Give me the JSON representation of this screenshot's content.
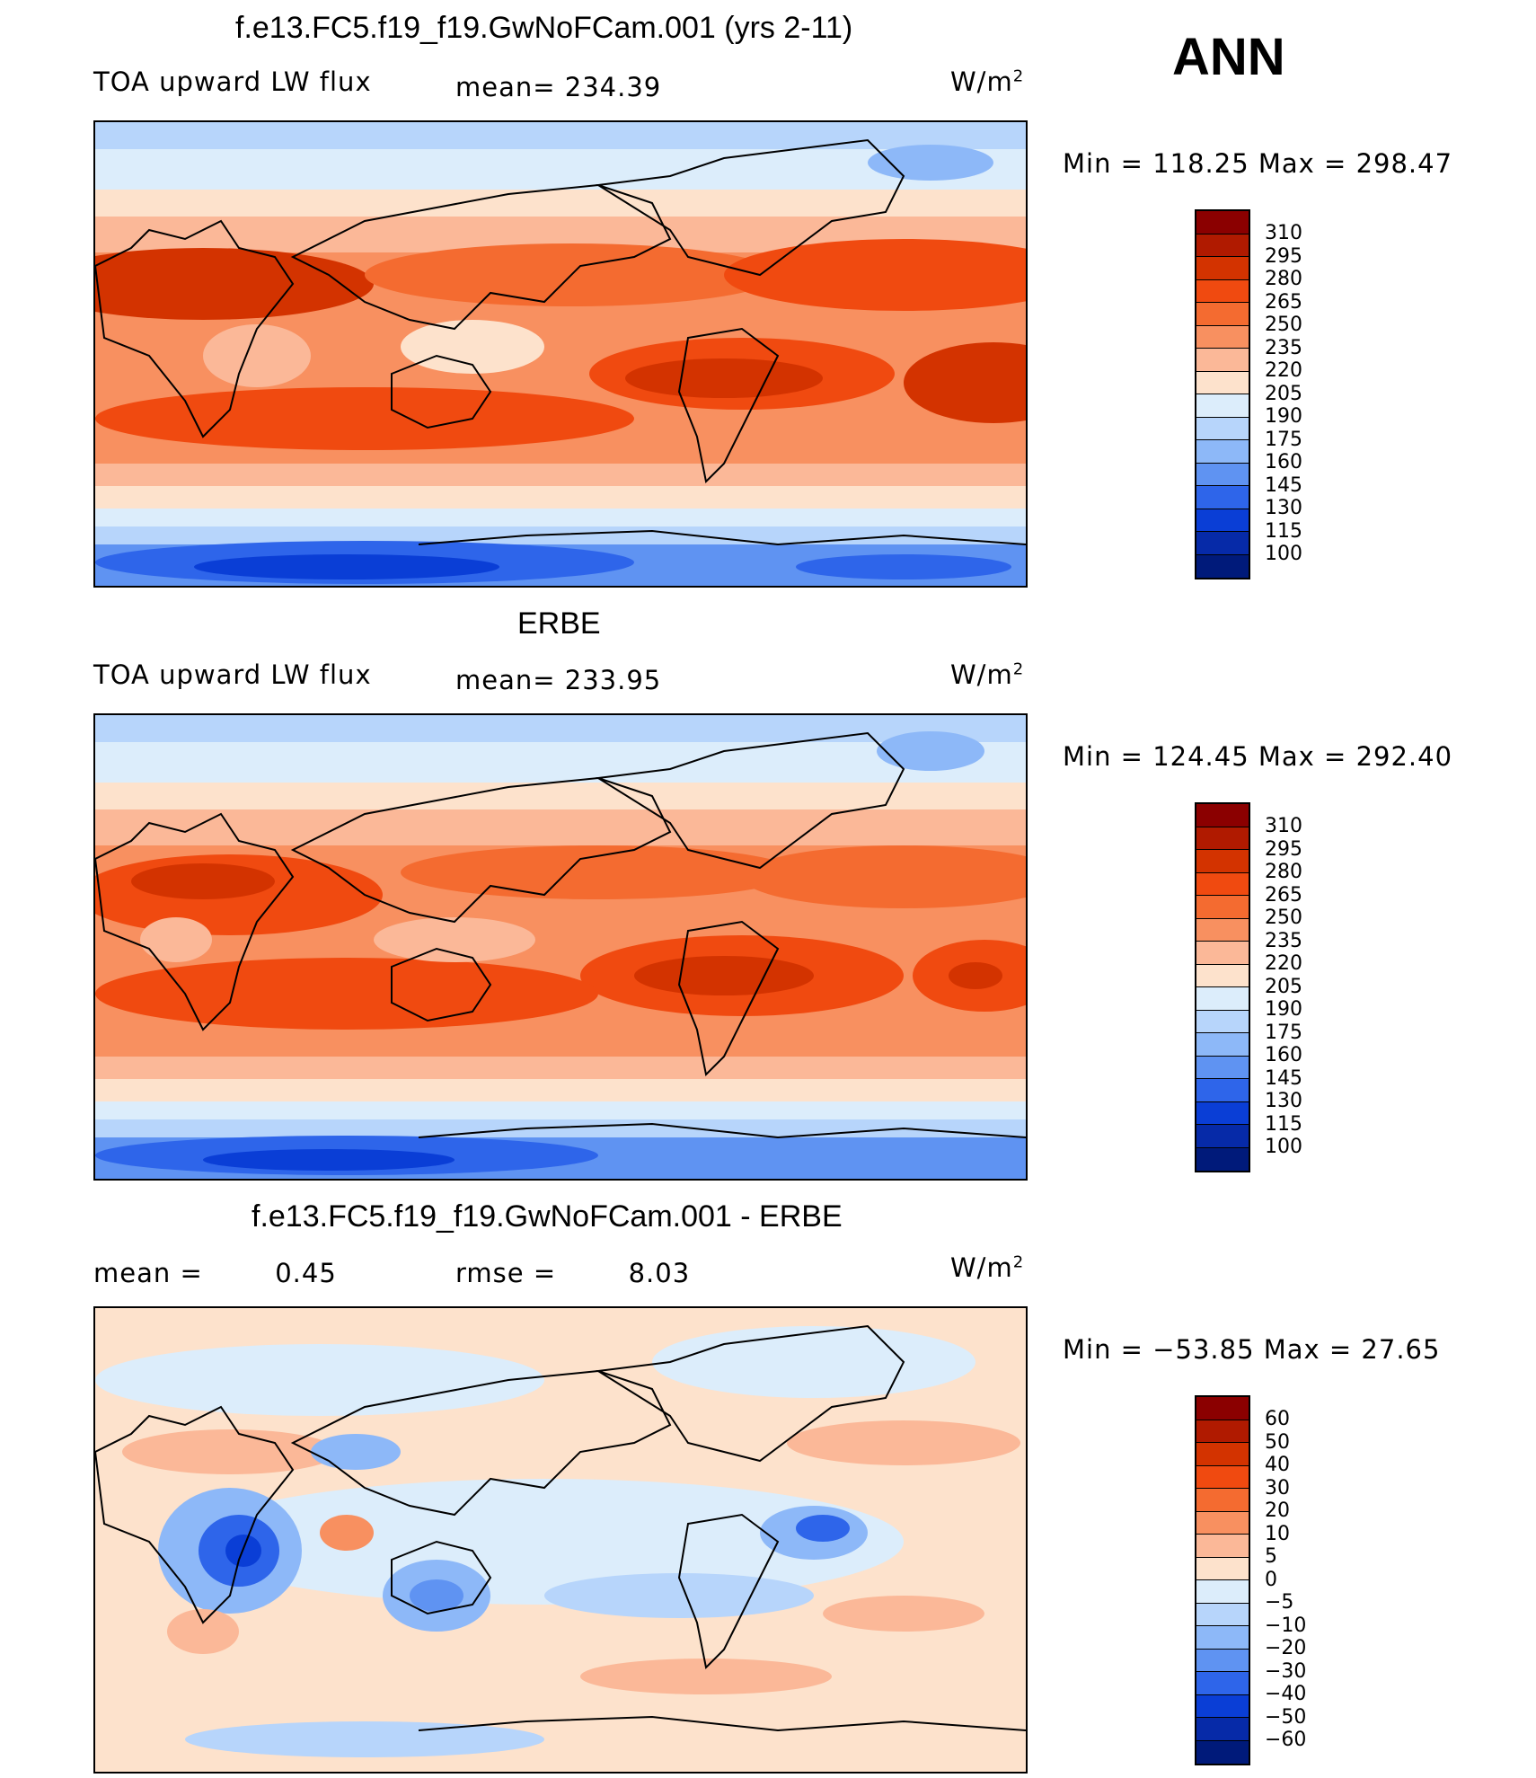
{
  "season": "ANN",
  "units": "W/m",
  "units_sup": "2",
  "panels": [
    {
      "title": "f.e13.FC5.f19_f19.GwNoFCam.001 (yrs 2-11)",
      "left_label": "TOA upward LW flux",
      "center_label": "mean=",
      "center_value": "234.39",
      "minmax": "Min  =  118.25  Max  =  298.47"
    },
    {
      "title": "ERBE",
      "left_label": "TOA upward LW flux",
      "center_label": "mean=",
      "center_value": "233.95",
      "minmax": "Min  =  124.45  Max  =  292.40"
    },
    {
      "title": "f.e13.FC5.f19_f19.GwNoFCam.001 - ERBE",
      "left_label": "mean  =",
      "left_value": "0.45",
      "center_label": "rmse  =",
      "center_value": "8.03",
      "minmax": "Min  =  −53.85  Max  =    27.65"
    }
  ],
  "colorbars": {
    "absolute": {
      "levels": [
        "310",
        "295",
        "280",
        "265",
        "250",
        "235",
        "220",
        "205",
        "190",
        "175",
        "160",
        "145",
        "130",
        "115",
        "100"
      ],
      "colors": [
        "#8b0000",
        "#b01a00",
        "#d33300",
        "#f04a10",
        "#f46b30",
        "#f89060",
        "#fbb898",
        "#fde2cc",
        "#dcedfb",
        "#b7d5fb",
        "#8db8f8",
        "#5f93f2",
        "#2e65ea",
        "#0a3ed6",
        "#062aa8",
        "#001a7a"
      ]
    },
    "difference": {
      "levels": [
        "60",
        "50",
        "40",
        "30",
        "20",
        "10",
        "5",
        "0",
        "−5",
        "−10",
        "−20",
        "−30",
        "−40",
        "−50",
        "−60"
      ],
      "colors": [
        "#8b0000",
        "#b01a00",
        "#d33300",
        "#f04a10",
        "#f46b30",
        "#f89060",
        "#fbb898",
        "#fde2cc",
        "#dcedfb",
        "#b7d5fb",
        "#8db8f8",
        "#5f93f2",
        "#2e65ea",
        "#0a3ed6",
        "#062aa8",
        "#001a7a"
      ]
    }
  },
  "maps": [
    {
      "name": "model-toa-lw-map",
      "variable": "TOA upward LW flux"
    },
    {
      "name": "erbe-toa-lw-map",
      "variable": "TOA upward LW flux"
    },
    {
      "name": "difference-toa-lw-map",
      "variable": "TOA upward LW flux difference"
    }
  ]
}
